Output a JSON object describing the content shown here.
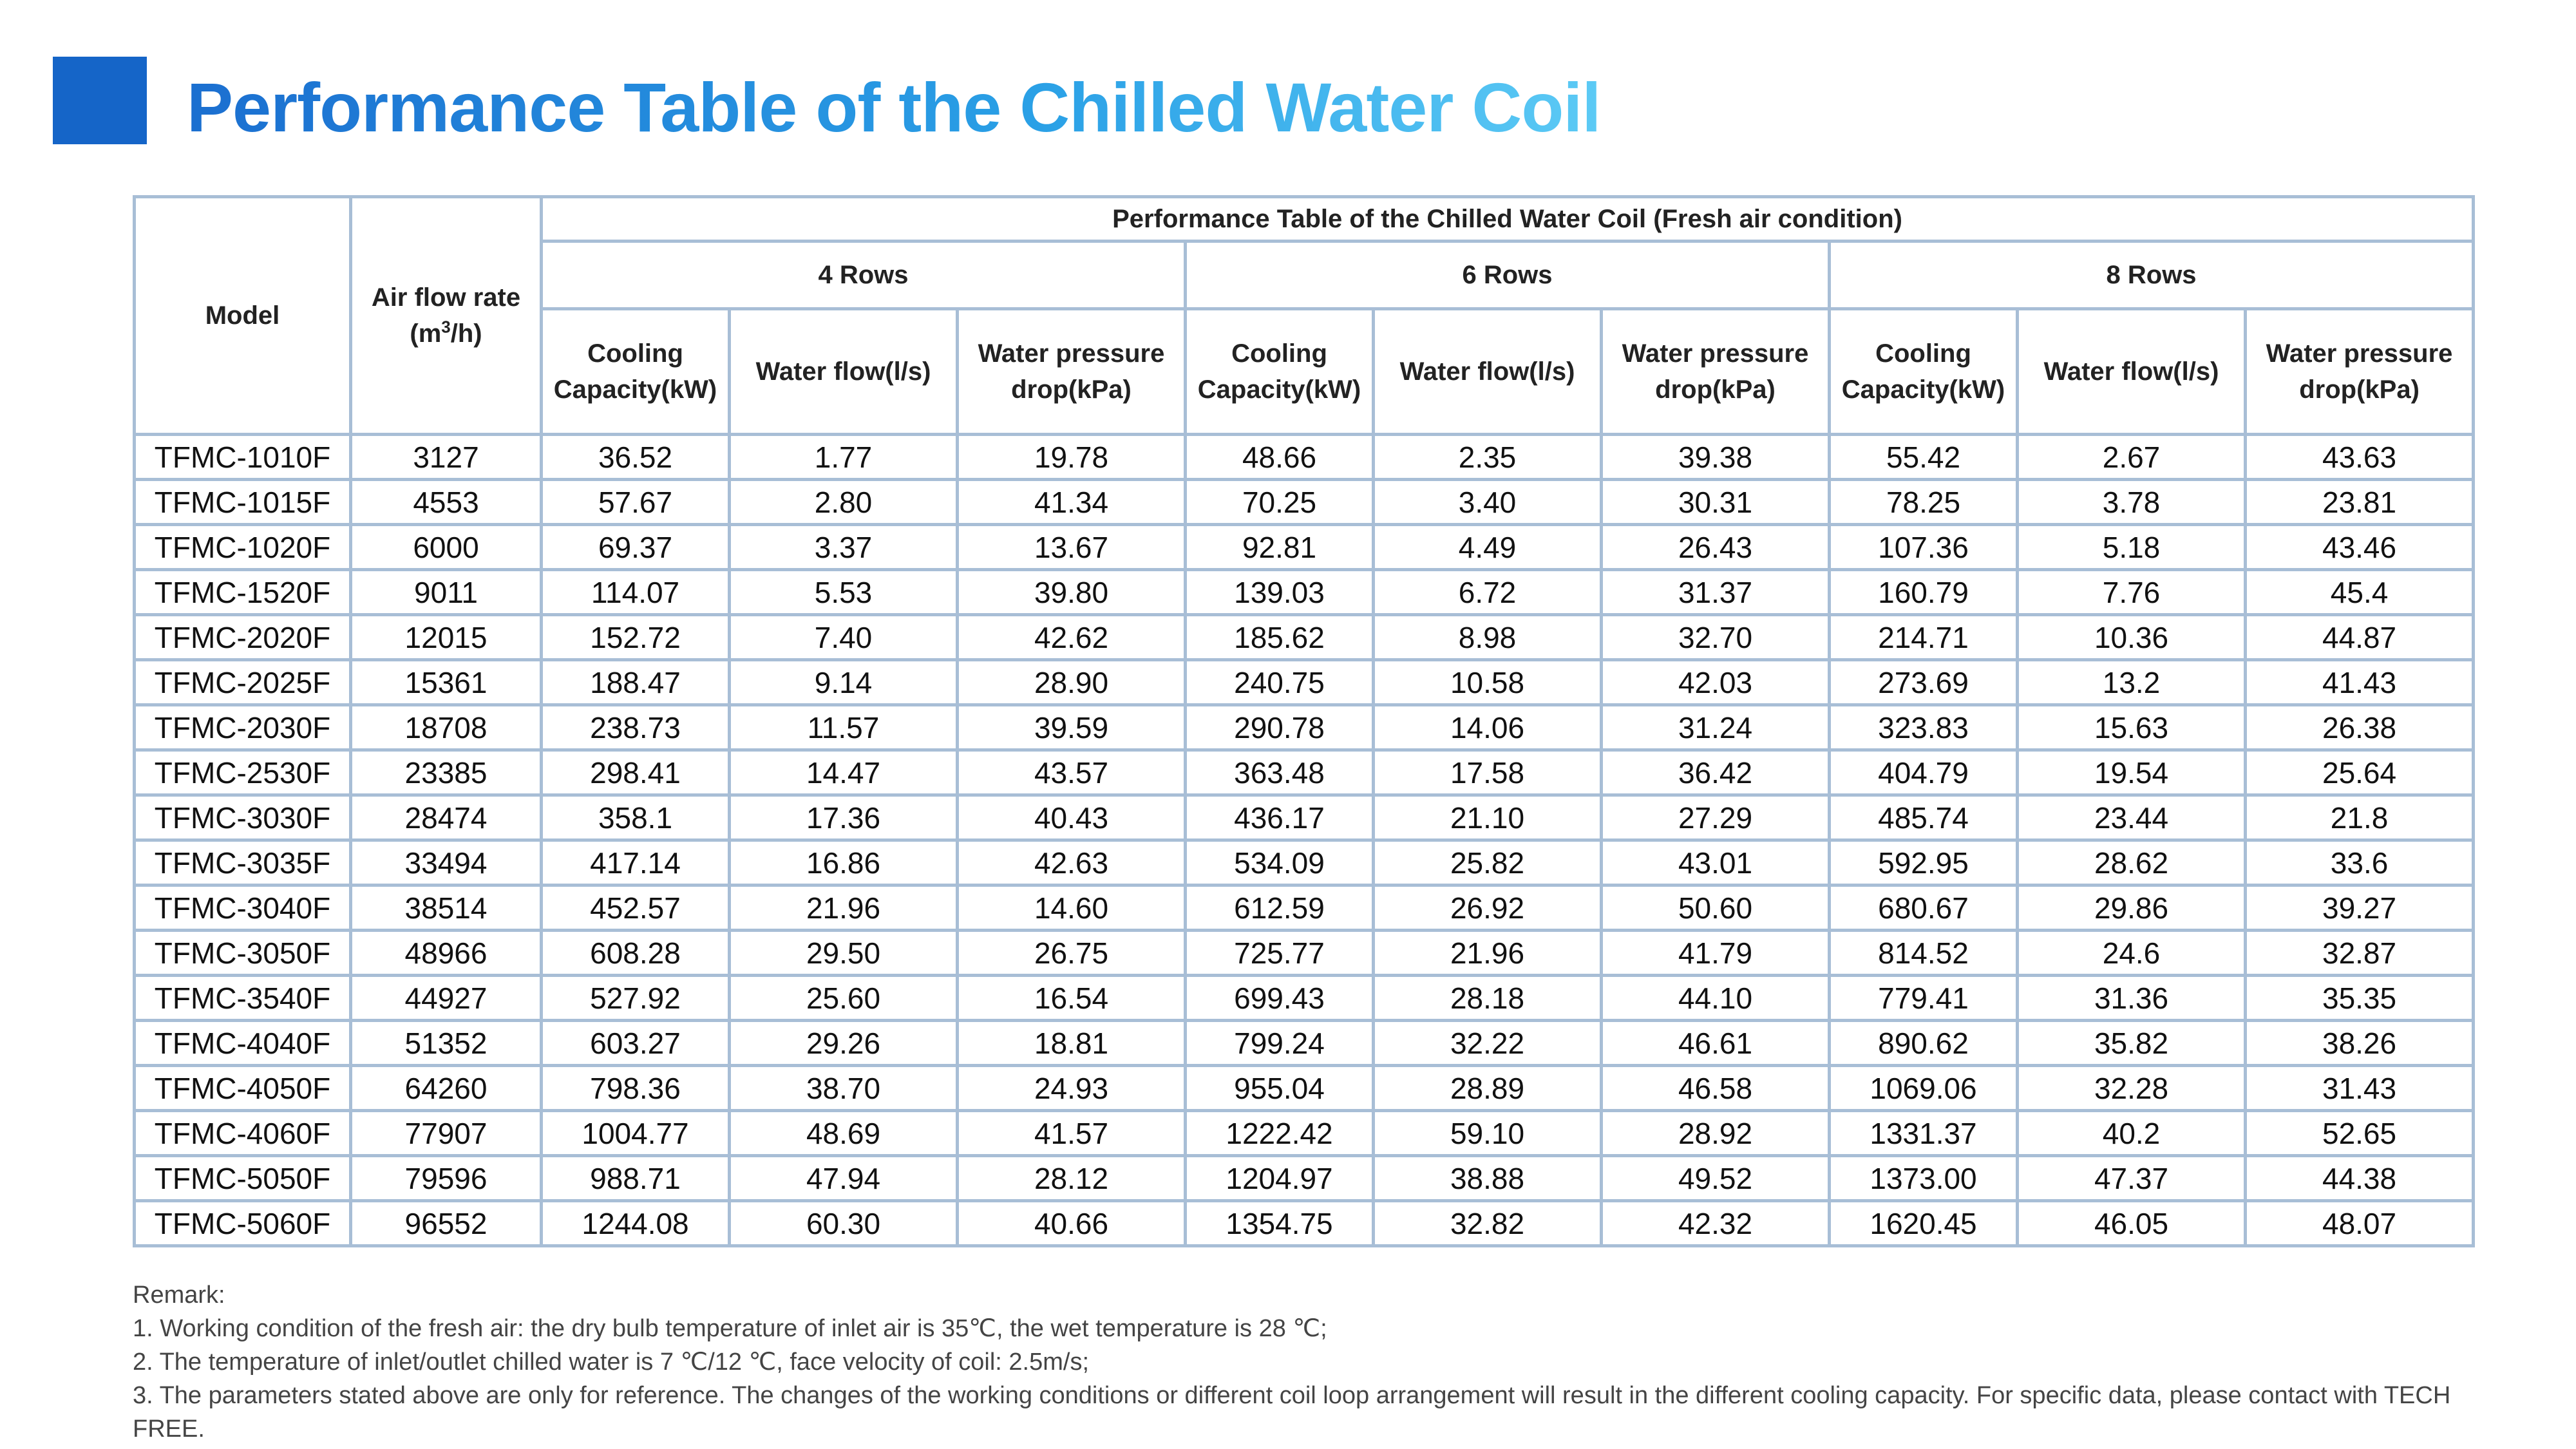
{
  "title": "Performance Table of the Chilled Water Coil",
  "table": {
    "caption": "Performance Table of the Chilled Water Coil (Fresh air condition)",
    "col_model": "Model",
    "col_airflow": "Air flow rate",
    "col_airflow_unit_pre": "(m",
    "col_airflow_unit_sup": "3",
    "col_airflow_unit_post": "/h)",
    "groups": [
      "4 Rows",
      "6 Rows",
      "8 Rows"
    ],
    "subheaders": [
      "Cooling Capacity(kW)",
      "Water flow(l/s)",
      "Water pressure drop(kPa)"
    ],
    "rows": [
      [
        "TFMC-1010F",
        "3127",
        "36.52",
        "1.77",
        "19.78",
        "48.66",
        "2.35",
        "39.38",
        "55.42",
        "2.67",
        "43.63"
      ],
      [
        "TFMC-1015F",
        "4553",
        "57.67",
        "2.80",
        "41.34",
        "70.25",
        "3.40",
        "30.31",
        "78.25",
        "3.78",
        "23.81"
      ],
      [
        "TFMC-1020F",
        "6000",
        "69.37",
        "3.37",
        "13.67",
        "92.81",
        "4.49",
        "26.43",
        "107.36",
        "5.18",
        "43.46"
      ],
      [
        "TFMC-1520F",
        "9011",
        "114.07",
        "5.53",
        "39.80",
        "139.03",
        "6.72",
        "31.37",
        "160.79",
        "7.76",
        "45.4"
      ],
      [
        "TFMC-2020F",
        "12015",
        "152.72",
        "7.40",
        "42.62",
        "185.62",
        "8.98",
        "32.70",
        "214.71",
        "10.36",
        "44.87"
      ],
      [
        "TFMC-2025F",
        "15361",
        "188.47",
        "9.14",
        "28.90",
        "240.75",
        "10.58",
        "42.03",
        "273.69",
        "13.2",
        "41.43"
      ],
      [
        "TFMC-2030F",
        "18708",
        "238.73",
        "11.57",
        "39.59",
        "290.78",
        "14.06",
        "31.24",
        "323.83",
        "15.63",
        "26.38"
      ],
      [
        "TFMC-2530F",
        "23385",
        "298.41",
        "14.47",
        "43.57",
        "363.48",
        "17.58",
        "36.42",
        "404.79",
        "19.54",
        "25.64"
      ],
      [
        "TFMC-3030F",
        "28474",
        "358.1",
        "17.36",
        "40.43",
        "436.17",
        "21.10",
        "27.29",
        "485.74",
        "23.44",
        "21.8"
      ],
      [
        "TFMC-3035F",
        "33494",
        "417.14",
        "16.86",
        "42.63",
        "534.09",
        "25.82",
        "43.01",
        "592.95",
        "28.62",
        "33.6"
      ],
      [
        "TFMC-3040F",
        "38514",
        "452.57",
        "21.96",
        "14.60",
        "612.59",
        "26.92",
        "50.60",
        "680.67",
        "29.86",
        "39.27"
      ],
      [
        "TFMC-3050F",
        "48966",
        "608.28",
        "29.50",
        "26.75",
        "725.77",
        "21.96",
        "41.79",
        "814.52",
        "24.6",
        "32.87"
      ],
      [
        "TFMC-3540F",
        "44927",
        "527.92",
        "25.60",
        "16.54",
        "699.43",
        "28.18",
        "44.10",
        "779.41",
        "31.36",
        "35.35"
      ],
      [
        "TFMC-4040F",
        "51352",
        "603.27",
        "29.26",
        "18.81",
        "799.24",
        "32.22",
        "46.61",
        "890.62",
        "35.82",
        "38.26"
      ],
      [
        "TFMC-4050F",
        "64260",
        "798.36",
        "38.70",
        "24.93",
        "955.04",
        "28.89",
        "46.58",
        "1069.06",
        "32.28",
        "31.43"
      ],
      [
        "TFMC-4060F",
        "77907",
        "1004.77",
        "48.69",
        "41.57",
        "1222.42",
        "59.10",
        "28.92",
        "1331.37",
        "40.2",
        "52.65"
      ],
      [
        "TFMC-5050F",
        "79596",
        "988.71",
        "47.94",
        "28.12",
        "1204.97",
        "38.88",
        "49.52",
        "1373.00",
        "47.37",
        "44.38"
      ],
      [
        "TFMC-5060F",
        "96552",
        "1244.08",
        "60.30",
        "40.66",
        "1354.75",
        "32.82",
        "42.32",
        "1620.45",
        "46.05",
        "48.07"
      ]
    ]
  },
  "remarks": [
    "Remark:",
    "1. Working condition of the fresh air: the dry bulb temperature of inlet air is 35℃, the wet temperature is 28 ℃;",
    "2. The temperature of inlet/outlet chilled water is 7 ℃/12 ℃, face velocity of coil: 2.5m/s;",
    "3. The parameters stated above are only for reference. The changes of the working conditions or different coil loop arrangement will result in the different cooling capacity. For specific data, please contact with TECH FREE."
  ],
  "colors": {
    "accent": "#1565c8",
    "title_gradient_start": "#1b6fd0",
    "title_gradient_end": "#5ccaf5",
    "grid": "#a8bed6"
  }
}
